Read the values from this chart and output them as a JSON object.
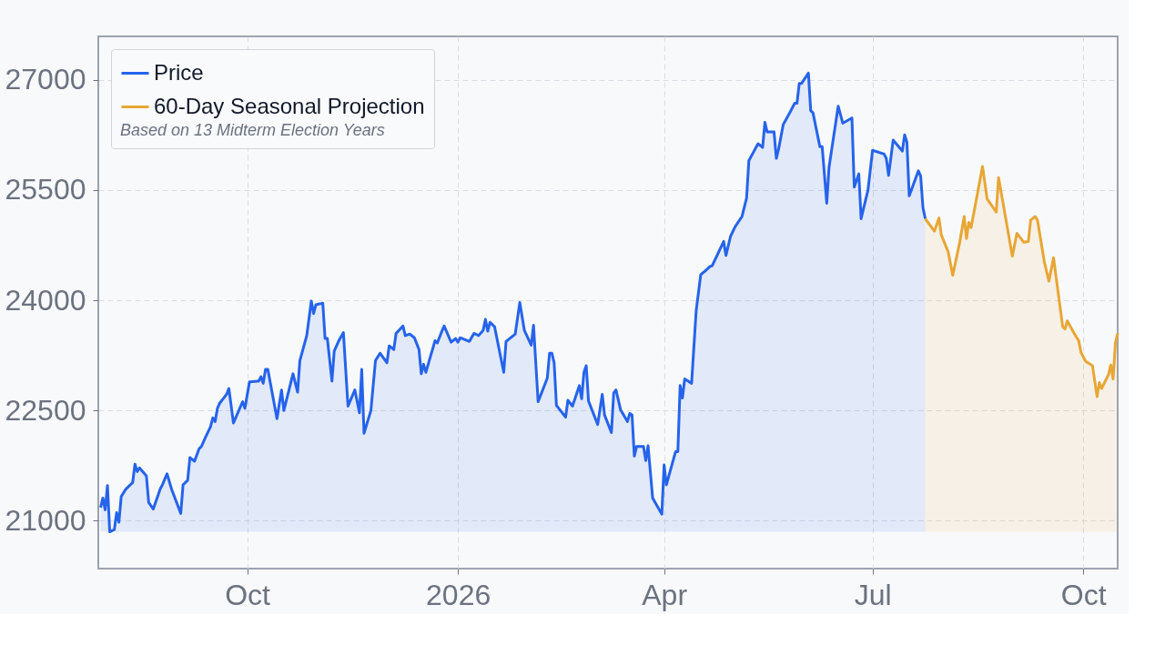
{
  "chart_data": {
    "type": "area",
    "legend_title": "Based on 13 Midterm Election Years",
    "xlim": [
      "2025-07-28",
      "2026-10-16"
    ],
    "xticks": [
      {
        "value": "2025-10-01",
        "label": "Oct"
      },
      {
        "value": "2026-01-01",
        "label": "2026"
      },
      {
        "value": "2026-04-01",
        "label": "Apr"
      },
      {
        "value": "2026-07-01",
        "label": "Jul"
      },
      {
        "value": "2026-10-01",
        "label": "Oct"
      }
    ],
    "ylim": [
      20350,
      27590
    ],
    "yticks": [
      21000,
      22500,
      24000,
      25500,
      27000
    ],
    "grid": true,
    "legend": "top left",
    "line_style": "solid",
    "marker": "none",
    "series": [
      {
        "name": "Price",
        "color": "#2563eb",
        "x": [
          "2025-07-29",
          "2025-07-30",
          "2025-07-31",
          "2025-08-01",
          "2025-08-02",
          "2025-08-04",
          "2025-08-05",
          "2025-08-06",
          "2025-08-07",
          "2025-08-09",
          "2025-08-12",
          "2025-08-13",
          "2025-08-14",
          "2025-08-15",
          "2025-08-18",
          "2025-08-19",
          "2025-08-21",
          "2025-08-24",
          "2025-08-25",
          "2025-08-27",
          "2025-08-29",
          "2025-09-02",
          "2025-09-03",
          "2025-09-05",
          "2025-09-06",
          "2025-09-08",
          "2025-09-10",
          "2025-09-11",
          "2025-09-13",
          "2025-09-15",
          "2025-09-16",
          "2025-09-17",
          "2025-09-18",
          "2025-09-19",
          "2025-09-22",
          "2025-09-23",
          "2025-09-25",
          "2025-09-29",
          "2025-09-30",
          "2025-10-02",
          "2025-10-06",
          "2025-10-07",
          "2025-10-08",
          "2025-10-09",
          "2025-10-10",
          "2025-10-14",
          "2025-10-16",
          "2025-10-17",
          "2025-10-21",
          "2025-10-23",
          "2025-10-24",
          "2025-10-27",
          "2025-10-29",
          "2025-10-30",
          "2025-10-31",
          "2025-11-03",
          "2025-11-04",
          "2025-11-05",
          "2025-11-07",
          "2025-11-08",
          "2025-11-10",
          "2025-11-12",
          "2025-11-14",
          "2025-11-17",
          "2025-11-19",
          "2025-11-20",
          "2025-11-21",
          "2025-11-24",
          "2025-11-26",
          "2025-11-28",
          "2025-12-01",
          "2025-12-02",
          "2025-12-04",
          "2025-12-05",
          "2025-12-08",
          "2025-12-09",
          "2025-12-11",
          "2025-12-13",
          "2025-12-15",
          "2025-12-16",
          "2025-12-17",
          "2025-12-18",
          "2025-12-22",
          "2025-12-23",
          "2025-12-25",
          "2025-12-26",
          "2025-12-29",
          "2025-12-31",
          "2026-01-01",
          "2026-01-02",
          "2026-01-06",
          "2026-01-08",
          "2026-01-10",
          "2026-01-12",
          "2026-01-13",
          "2026-01-14",
          "2026-01-15",
          "2026-01-17",
          "2026-01-21",
          "2026-01-22",
          "2026-01-26",
          "2026-01-28",
          "2026-01-30",
          "2026-02-02",
          "2026-02-03",
          "2026-02-05",
          "2026-02-09",
          "2026-02-10",
          "2026-02-11",
          "2026-02-12",
          "2026-02-13",
          "2026-02-17",
          "2026-02-18",
          "2026-02-20",
          "2026-02-23",
          "2026-02-24",
          "2026-02-25",
          "2026-02-26",
          "2026-02-27",
          "2026-03-03",
          "2026-03-05",
          "2026-03-06",
          "2026-03-09",
          "2026-03-10",
          "2026-03-11",
          "2026-03-13",
          "2026-03-16",
          "2026-03-17",
          "2026-03-18",
          "2026-03-19",
          "2026-03-20",
          "2026-03-23",
          "2026-03-24",
          "2026-03-25",
          "2026-03-27",
          "2026-03-31",
          "2026-04-01",
          "2026-04-02",
          "2026-04-06",
          "2026-04-07",
          "2026-04-08",
          "2026-04-09",
          "2026-04-10",
          "2026-04-13",
          "2026-04-15",
          "2026-04-17",
          "2026-04-19",
          "2026-04-21",
          "2026-04-22",
          "2026-04-27",
          "2026-04-28",
          "2026-04-30",
          "2026-05-02",
          "2026-05-05",
          "2026-05-07",
          "2026-05-08",
          "2026-05-12",
          "2026-05-14",
          "2026-05-15",
          "2026-05-16",
          "2026-05-19",
          "2026-05-20",
          "2026-05-21",
          "2026-05-23",
          "2026-05-26",
          "2026-05-28",
          "2026-05-29",
          "2026-05-30",
          "2026-05-31",
          "2026-06-03",
          "2026-06-04",
          "2026-06-05",
          "2026-06-08",
          "2026-06-09",
          "2026-06-11",
          "2026-06-12",
          "2026-06-16",
          "2026-06-18",
          "2026-06-22",
          "2026-06-23",
          "2026-06-25",
          "2026-06-26",
          "2026-06-29",
          "2026-07-01",
          "2026-07-06",
          "2026-07-07",
          "2026-07-08",
          "2026-07-10",
          "2026-07-14",
          "2026-07-15",
          "2026-07-16",
          "2026-07-17",
          "2026-07-21",
          "2026-07-22",
          "2026-07-23",
          "2026-07-24"
        ],
        "values": [
          21180,
          21310,
          21150,
          21480,
          20850,
          20880,
          21110,
          20980,
          21330,
          21430,
          21520,
          21770,
          21670,
          21720,
          21610,
          21250,
          21160,
          21430,
          21490,
          21640,
          21430,
          21100,
          21490,
          21550,
          21860,
          21810,
          21980,
          22010,
          22150,
          22280,
          22400,
          22350,
          22530,
          22600,
          22720,
          22800,
          22330,
          22620,
          22530,
          22890,
          22900,
          22960,
          22870,
          23060,
          23060,
          22390,
          22780,
          22500,
          23000,
          22750,
          23180,
          23520,
          23990,
          23820,
          23940,
          23960,
          23480,
          23480,
          22900,
          23310,
          23450,
          23560,
          22560,
          22780,
          22470,
          23060,
          22190,
          22500,
          23180,
          23280,
          23150,
          23380,
          23330,
          23550,
          23650,
          23520,
          23540,
          23490,
          23330,
          23000,
          23130,
          23020,
          23450,
          23420,
          23580,
          23650,
          23430,
          23480,
          23430,
          23490,
          23440,
          23550,
          23520,
          23590,
          23740,
          23580,
          23700,
          23640,
          23020,
          23440,
          23540,
          23970,
          23590,
          23390,
          23660,
          22620,
          22940,
          23280,
          23280,
          23150,
          22570,
          22410,
          22640,
          22560,
          22840,
          22660,
          23020,
          23110,
          22630,
          22310,
          22720,
          22440,
          22200,
          22740,
          22780,
          22510,
          22350,
          22460,
          22440,
          21880,
          22010,
          22010,
          21820,
          22020,
          21310,
          21090,
          21760,
          21490,
          21940,
          21940,
          22840,
          22670,
          22930,
          22870,
          23860,
          24350,
          24400,
          24460,
          24470,
          24800,
          24610,
          24870,
          25000,
          25140,
          25390,
          25900,
          26130,
          26080,
          26420,
          26290,
          26290,
          25930,
          26060,
          26390,
          26560,
          26680,
          26680,
          26950,
          26950,
          27090,
          26580,
          26550,
          26090,
          26090,
          25320,
          25810,
          26640,
          26410,
          26480,
          25540,
          25720,
          25110,
          25500,
          26040,
          25990,
          25930,
          25700,
          26180,
          26030,
          26250,
          26150,
          25420,
          25760,
          25690,
          25260,
          25110
        ]
      },
      {
        "name": "60-Day Seasonal Projection",
        "color": "#e8a634",
        "x": [
          "2026-07-24",
          "2026-07-28",
          "2026-07-30",
          "2026-07-31",
          "2026-08-03",
          "2026-08-05",
          "2026-08-08",
          "2026-08-10",
          "2026-08-11",
          "2026-08-12",
          "2026-08-13",
          "2026-08-15",
          "2026-08-18",
          "2026-08-20",
          "2026-08-22",
          "2026-08-24",
          "2026-08-25",
          "2026-08-29",
          "2026-08-31",
          "2026-09-02",
          "2026-09-05",
          "2026-09-07",
          "2026-09-08",
          "2026-09-10",
          "2026-09-11",
          "2026-09-14",
          "2026-09-16",
          "2026-09-18",
          "2026-09-22",
          "2026-09-23",
          "2026-09-24",
          "2026-09-27",
          "2026-09-29",
          "2026-09-30",
          "2026-10-02",
          "2026-10-05",
          "2026-10-07",
          "2026-10-08",
          "2026-10-09",
          "2026-10-12",
          "2026-10-13",
          "2026-10-14",
          "2026-10-15",
          "2026-10-16"
        ],
        "values": [
          25110,
          24940,
          25120,
          24890,
          24660,
          24340,
          24780,
          25140,
          24840,
          25060,
          24990,
          25320,
          25820,
          25380,
          25290,
          25200,
          25670,
          24960,
          24600,
          24910,
          24790,
          24800,
          25090,
          25140,
          25090,
          24520,
          24260,
          24580,
          23640,
          23610,
          23720,
          23550,
          23450,
          23290,
          23170,
          23110,
          22690,
          22880,
          22800,
          22990,
          23120,
          22930,
          23420,
          23550
        ]
      }
    ]
  }
}
